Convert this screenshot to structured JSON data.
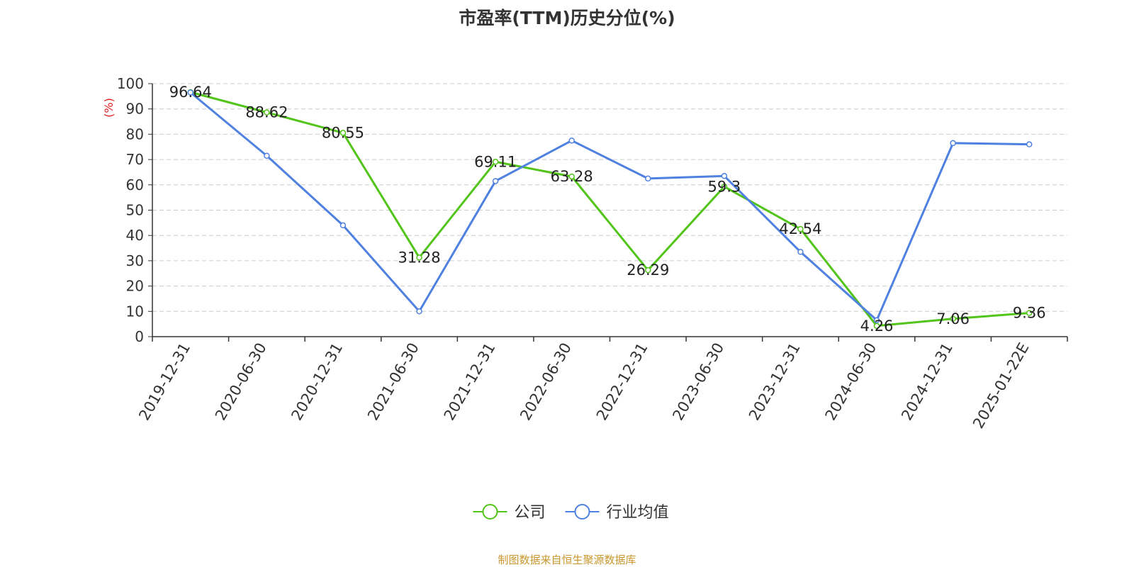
{
  "chart_data": {
    "type": "line",
    "title": "市盈率(TTM)历史分位(%)",
    "ylabel": "(%)",
    "ylim": [
      0,
      100
    ],
    "yticks": [
      0,
      10,
      20,
      30,
      40,
      50,
      60,
      70,
      80,
      90,
      100
    ],
    "grid": true,
    "legend_position": "bottom",
    "categories": [
      "2019-12-31",
      "2020-06-30",
      "2020-12-31",
      "2021-06-30",
      "2021-12-31",
      "2022-06-30",
      "2022-12-31",
      "2023-06-30",
      "2023-12-31",
      "2024-06-30",
      "2024-12-31",
      "2025-01-22E"
    ],
    "series": [
      {
        "name": "公司",
        "color": "#52c41a",
        "values": [
          96.64,
          88.62,
          80.55,
          31.28,
          69.11,
          63.28,
          26.29,
          59.3,
          42.54,
          4.26,
          7.06,
          9.36
        ],
        "labels": [
          "96.64",
          "88.62",
          "80.55",
          "31.28",
          "69.11",
          "63.28",
          "26.29",
          "59.3",
          "42.54",
          "4.26",
          "7.06",
          "9.36"
        ]
      },
      {
        "name": "行业均值",
        "color": "#4f81e0",
        "values": [
          96.5,
          71.5,
          44.0,
          10.0,
          61.5,
          77.5,
          62.5,
          63.5,
          33.5,
          6.5,
          76.5,
          76.0
        ]
      }
    ]
  },
  "source": "制图数据来自恒生聚源数据库",
  "colors": {
    "source_text": "#c8962d",
    "ylabel_text": "#e02020",
    "axis": "#333333",
    "grid": "#cccccc"
  }
}
